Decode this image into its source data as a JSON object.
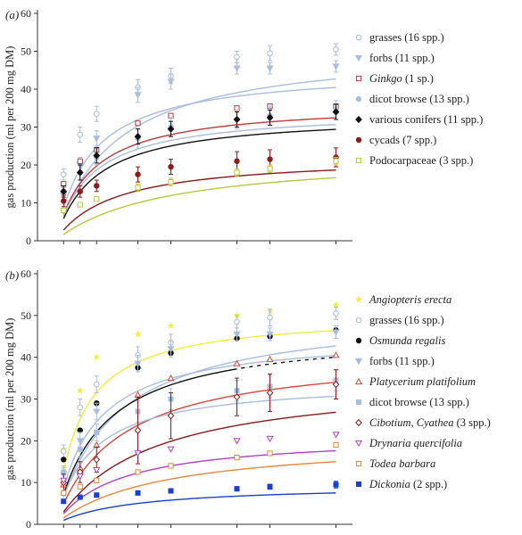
{
  "chart_data": [
    {
      "panel": "(a)",
      "type": "line",
      "ylabel": "gas production (ml per 200 mg DM)",
      "ylim": [
        0,
        60
      ],
      "yticks": [
        0,
        10,
        20,
        30,
        40,
        50,
        60
      ],
      "xlim": [
        0,
        72
      ],
      "x": [
        2,
        6,
        10,
        20,
        28,
        44,
        52,
        68
      ],
      "series": [
        {
          "name": "grasses (16 spp.)",
          "marker": "circle-open",
          "color": "#a9bde0",
          "italic": false,
          "values": [
            17.5,
            28,
            33.5,
            40.5,
            43.5,
            48.5,
            49.5,
            50.5
          ],
          "errors": [
            1.5,
            2,
            2,
            2,
            2,
            1.5,
            2,
            1.5
          ],
          "fit": {
            "a": 51.5,
            "b": 14.0
          }
        },
        {
          "name": "forbs (11 spp.)",
          "marker": "triangle-down",
          "color": "#a9bde0",
          "italic": false,
          "values": [
            12,
            20,
            27,
            38.5,
            42,
            45.5,
            45.5,
            46
          ],
          "errors": [
            1.5,
            2,
            2,
            2,
            2,
            1.5,
            1.5,
            1.5
          ],
          "fit": {
            "a": 45.5,
            "b": 8.5
          }
        },
        {
          "name": "Ginkgo",
          "name_suffix": " (1 sp.)",
          "marker": "square-open",
          "color": "#c0393b",
          "italic": true,
          "values": [
            15,
            21,
            24,
            31,
            33,
            35,
            35.5,
            35.5
          ],
          "errors": [
            0,
            0,
            0,
            0,
            0,
            0,
            0,
            0
          ],
          "fit": {
            "a": 36.5,
            "b": 8.5
          }
        },
        {
          "name": "dicot browse (13 spp.)",
          "marker": "circle-filled",
          "color": "#a9bde0",
          "italic": false,
          "values": [
            12.5,
            18,
            22,
            27,
            30,
            32,
            33,
            34.5
          ],
          "errors": [
            1.5,
            2,
            2,
            2.5,
            2.5,
            2.5,
            2.5,
            2.5
          ],
          "fit": {
            "a": 34.5,
            "b": 8.5
          }
        },
        {
          "name": "various conifers (11 spp.)",
          "marker": "diamond-filled",
          "color": "#111111",
          "italic": false,
          "values": [
            13,
            18,
            22.5,
            27.5,
            29.5,
            32,
            32.5,
            34
          ],
          "errors": [
            1.5,
            2,
            2,
            2,
            2,
            2,
            2,
            2
          ],
          "fit": {
            "a": 33.5,
            "b": 9.5
          }
        },
        {
          "name": "cycads (7 spp.)",
          "marker": "circle-filled",
          "color": "#8b1a1a",
          "italic": false,
          "values": [
            10.5,
            13,
            14.5,
            17.5,
            19.5,
            21,
            21.5,
            22
          ],
          "errors": [
            1.5,
            1.5,
            1.5,
            2,
            2,
            2.5,
            2.5,
            2.5
          ],
          "fit": {
            "a": 22.5,
            "b": 14.0
          }
        },
        {
          "name": "Podocarpaceae (3 spp.)",
          "marker": "square-open",
          "color": "#b5c93a",
          "italic": false,
          "values": [
            8,
            9.5,
            11,
            14,
            15.5,
            18,
            19,
            21
          ],
          "errors": [
            0.5,
            0.5,
            0.5,
            1,
            1,
            1,
            1,
            1
          ],
          "fit": {
            "a": 23,
            "b": 26.0
          }
        }
      ]
    },
    {
      "panel": "(b)",
      "type": "line",
      "ylabel": "gas production (ml per 200 mg DM)",
      "ylim": [
        0,
        60
      ],
      "yticks": [
        0,
        10,
        20,
        30,
        40,
        50,
        60
      ],
      "xlim": [
        0,
        72
      ],
      "x": [
        2,
        6,
        10,
        20,
        28,
        44,
        52,
        68
      ],
      "series": [
        {
          "name": "Angiopteris erecta",
          "name_suffix": "",
          "marker": "star",
          "color": "#f2ee3a",
          "italic": true,
          "values": [
            18,
            32,
            40,
            45.5,
            47.5,
            50,
            51,
            52.5
          ],
          "errors": [
            0,
            0,
            0,
            0,
            0,
            0,
            0,
            0
          ],
          "fit": {
            "a": 50.5,
            "b": 6.0
          }
        },
        {
          "name": "grasses (16 spp.)",
          "marker": "circle-open",
          "color": "#a9bde0",
          "italic": false,
          "values": [
            17.5,
            28,
            33.5,
            40.5,
            43.5,
            48.5,
            49.5,
            50.5
          ],
          "errors": [
            1.5,
            2,
            2,
            2,
            2,
            1.5,
            2,
            1.5
          ],
          "fit": {
            "a": 51.5,
            "b": 14.0
          }
        },
        {
          "name": "Osmunda regalis",
          "name_suffix": "",
          "marker": "circle-filled",
          "color": "#111111",
          "italic": true,
          "values": [
            15.5,
            22.5,
            29,
            37.5,
            41,
            44.5,
            45,
            46.5
          ],
          "errors": [
            0,
            0,
            0,
            0,
            0,
            0,
            0,
            0
          ],
          "fit": {
            "a": 46.5,
            "b": 11.0
          }
        },
        {
          "name": "forbs (11 spp.)",
          "marker": "triangle-down",
          "color": "#a9bde0",
          "italic": false,
          "values": [
            12,
            20,
            27,
            38.5,
            42,
            45.5,
            45.5,
            46
          ],
          "errors": [
            1.5,
            2,
            2,
            2,
            2,
            1.5,
            1.5,
            1.5
          ],
          "fit": {
            "a": 45.5,
            "b": 8.5
          }
        },
        {
          "name": "Platycerium platifolium",
          "name_suffix": "",
          "marker": "triangle-up-open",
          "color": "#d8483b",
          "italic": true,
          "values": [
            9.5,
            13.5,
            19,
            31,
            35,
            38.5,
            39.5,
            40.5
          ],
          "errors": [
            0,
            0,
            0,
            0,
            0,
            0,
            0,
            0
          ],
          "fit": {
            "a": 41.5,
            "b": 15.0
          }
        },
        {
          "name": "dicot browse (13 spp.)",
          "marker": "square-filled",
          "color": "#a9bde0",
          "italic": false,
          "values": [
            12.5,
            18,
            22,
            27,
            30,
            32,
            33,
            34.5
          ],
          "errors": [
            1.5,
            2,
            2,
            2.5,
            2.5,
            2.5,
            2.5,
            2.5
          ],
          "fit": {
            "a": 34.5,
            "b": 8.5
          }
        },
        {
          "name": "Cibotium, Cyathea",
          "name_suffix": " (3 spp.)",
          "marker": "diamond-open",
          "color": "#8b1a1a",
          "italic": true,
          "values": [
            10,
            12.5,
            15.5,
            22.5,
            26,
            30.5,
            31.5,
            33.5
          ],
          "errors": [
            2,
            2.5,
            3,
            8,
            5.5,
            4.5,
            4.5,
            3.5
          ],
          "fit": {
            "a": 35.5,
            "b": 22.0
          }
        },
        {
          "name": "Drynaria quercifolia",
          "name_suffix": "",
          "marker": "triangle-down-open",
          "color": "#b040c8",
          "italic": true,
          "values": [
            10.5,
            11.5,
            13,
            17,
            18,
            20,
            20.5,
            21.5
          ],
          "errors": [
            0,
            0,
            0,
            0,
            0,
            0,
            0,
            0
          ],
          "fit": {
            "a": 21.5,
            "b": 15.0
          }
        },
        {
          "name": "Todea barbara",
          "name_suffix": "",
          "marker": "square-open",
          "color": "#e08a3a",
          "italic": true,
          "values": [
            7.5,
            9,
            10.5,
            12.5,
            14,
            16,
            17,
            19
          ],
          "errors": [
            0,
            0,
            0,
            0,
            0,
            0,
            0,
            0
          ],
          "fit": {
            "a": 20.5,
            "b": 25.0
          }
        },
        {
          "name": "Dickonia",
          "name_suffix": " (2 spp.)",
          "marker": "square-filled",
          "color": "#1b3fd1",
          "italic": true,
          "values": [
            5.5,
            6.5,
            7,
            7.5,
            8,
            8.5,
            9,
            9.5
          ],
          "errors": [
            0.3,
            0.3,
            0.3,
            0.4,
            0.4,
            0.5,
            0.6,
            0.8
          ],
          "fit": {
            "a": 9.5,
            "b": 18.0
          }
        }
      ]
    }
  ]
}
